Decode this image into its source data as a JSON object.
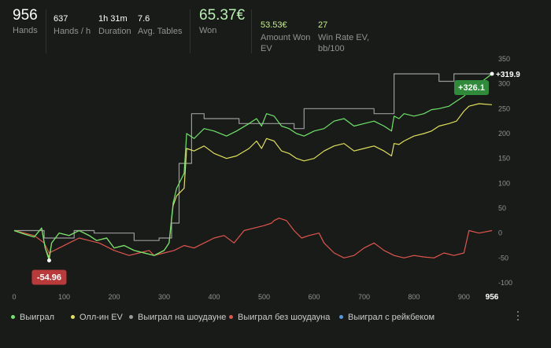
{
  "stats": {
    "hands": {
      "value": "956",
      "label": "Hands"
    },
    "hands_per_hour": {
      "value": "637",
      "label": "Hands / h"
    },
    "duration": {
      "value": "1h 31m",
      "label": "Duration"
    },
    "avg_tables": {
      "value": "7.6",
      "label": "Avg. Tables"
    },
    "won": {
      "value": "65.37€",
      "label": "Won"
    },
    "amount_won_ev": {
      "value": "53.53€",
      "label_line1": "Amount Won",
      "label_line2": "EV"
    },
    "win_rate_ev": {
      "value": "27",
      "label_line1": "Win Rate EV,",
      "label_line2": "bb/100"
    }
  },
  "colors": {
    "won": "#6fe36a",
    "allin_ev": "#e0e05a",
    "showdown": "#9a9a9a",
    "non_showdown": "#e0554d",
    "rakeback": "#4e9ae0",
    "positive_tag": "#2f8a3a",
    "negative_tag": "#b83a3a",
    "value_text": "#ffffff",
    "won_value": "#b7f0b0",
    "ev_value": "#c6f08a"
  },
  "chart_data": {
    "type": "line",
    "x_ticks": [
      0,
      100,
      200,
      300,
      400,
      500,
      600,
      700,
      800,
      900
    ],
    "x_end_label": "956",
    "y_ticks": [
      350,
      300,
      250,
      200,
      150,
      100,
      50,
      0,
      -50,
      -100
    ],
    "xlim": [
      0,
      956
    ],
    "ylim": [
      -100,
      350
    ],
    "grid": false,
    "legend_position": "bottom",
    "annotations": {
      "max_label": "+326.1",
      "min_label": "-54.96",
      "end_label": "+319.9"
    },
    "series": [
      {
        "name": "Выиграл",
        "color_key": "won",
        "points": [
          [
            0,
            5
          ],
          [
            20,
            -2
          ],
          [
            40,
            -8
          ],
          [
            55,
            10
          ],
          [
            62,
            -30
          ],
          [
            70,
            -55
          ],
          [
            75,
            -20
          ],
          [
            90,
            0
          ],
          [
            110,
            -5
          ],
          [
            130,
            5
          ],
          [
            150,
            -5
          ],
          [
            165,
            -15
          ],
          [
            185,
            -10
          ],
          [
            200,
            -30
          ],
          [
            220,
            -25
          ],
          [
            240,
            -35
          ],
          [
            260,
            -40
          ],
          [
            280,
            -45
          ],
          [
            300,
            -35
          ],
          [
            310,
            -20
          ],
          [
            318,
            60
          ],
          [
            325,
            90
          ],
          [
            340,
            120
          ],
          [
            345,
            200
          ],
          [
            360,
            190
          ],
          [
            380,
            210
          ],
          [
            400,
            205
          ],
          [
            425,
            195
          ],
          [
            445,
            205
          ],
          [
            470,
            220
          ],
          [
            485,
            230
          ],
          [
            495,
            215
          ],
          [
            505,
            240
          ],
          [
            520,
            235
          ],
          [
            535,
            215
          ],
          [
            550,
            210
          ],
          [
            565,
            200
          ],
          [
            580,
            195
          ],
          [
            600,
            205
          ],
          [
            620,
            210
          ],
          [
            640,
            225
          ],
          [
            660,
            230
          ],
          [
            680,
            215
          ],
          [
            700,
            220
          ],
          [
            720,
            225
          ],
          [
            740,
            215
          ],
          [
            755,
            205
          ],
          [
            760,
            235
          ],
          [
            770,
            230
          ],
          [
            780,
            240
          ],
          [
            800,
            235
          ],
          [
            820,
            240
          ],
          [
            835,
            248
          ],
          [
            850,
            250
          ],
          [
            870,
            255
          ],
          [
            885,
            265
          ],
          [
            900,
            275
          ],
          [
            910,
            285
          ],
          [
            930,
            300
          ],
          [
            956,
            320
          ]
        ]
      },
      {
        "name": "Олл-ин EV",
        "color_key": "allin_ev",
        "points": [
          [
            0,
            5
          ],
          [
            20,
            -2
          ],
          [
            40,
            -8
          ],
          [
            55,
            10
          ],
          [
            62,
            -30
          ],
          [
            70,
            -50
          ],
          [
            75,
            -20
          ],
          [
            90,
            0
          ],
          [
            110,
            -5
          ],
          [
            130,
            5
          ],
          [
            150,
            -5
          ],
          [
            165,
            -15
          ],
          [
            185,
            -10
          ],
          [
            200,
            -30
          ],
          [
            220,
            -25
          ],
          [
            240,
            -35
          ],
          [
            260,
            -40
          ],
          [
            280,
            -45
          ],
          [
            300,
            -35
          ],
          [
            310,
            -20
          ],
          [
            318,
            55
          ],
          [
            325,
            75
          ],
          [
            340,
            90
          ],
          [
            345,
            170
          ],
          [
            360,
            165
          ],
          [
            380,
            175
          ],
          [
            400,
            160
          ],
          [
            425,
            150
          ],
          [
            445,
            155
          ],
          [
            470,
            170
          ],
          [
            485,
            185
          ],
          [
            495,
            170
          ],
          [
            505,
            190
          ],
          [
            520,
            185
          ],
          [
            535,
            165
          ],
          [
            550,
            160
          ],
          [
            565,
            150
          ],
          [
            580,
            145
          ],
          [
            600,
            150
          ],
          [
            620,
            165
          ],
          [
            640,
            175
          ],
          [
            660,
            180
          ],
          [
            680,
            165
          ],
          [
            700,
            170
          ],
          [
            720,
            175
          ],
          [
            740,
            165
          ],
          [
            755,
            155
          ],
          [
            760,
            180
          ],
          [
            770,
            178
          ],
          [
            780,
            185
          ],
          [
            800,
            195
          ],
          [
            820,
            200
          ],
          [
            835,
            205
          ],
          [
            850,
            215
          ],
          [
            870,
            220
          ],
          [
            885,
            225
          ],
          [
            900,
            245
          ],
          [
            910,
            255
          ],
          [
            930,
            260
          ],
          [
            956,
            258
          ]
        ]
      },
      {
        "name": "Выиграл на шоудауне",
        "color_key": "showdown",
        "points": [
          [
            0,
            5
          ],
          [
            60,
            5
          ],
          [
            60,
            -10
          ],
          [
            120,
            -10
          ],
          [
            120,
            5
          ],
          [
            160,
            5
          ],
          [
            160,
            0
          ],
          [
            240,
            0
          ],
          [
            240,
            -15
          ],
          [
            290,
            -15
          ],
          [
            290,
            -10
          ],
          [
            315,
            -10
          ],
          [
            315,
            20
          ],
          [
            330,
            20
          ],
          [
            330,
            140
          ],
          [
            355,
            140
          ],
          [
            355,
            240
          ],
          [
            380,
            240
          ],
          [
            380,
            230
          ],
          [
            450,
            230
          ],
          [
            450,
            220
          ],
          [
            560,
            220
          ],
          [
            560,
            210
          ],
          [
            580,
            210
          ],
          [
            580,
            250
          ],
          [
            720,
            250
          ],
          [
            720,
            240
          ],
          [
            760,
            240
          ],
          [
            760,
            320
          ],
          [
            850,
            320
          ],
          [
            850,
            305
          ],
          [
            880,
            305
          ],
          [
            880,
            320
          ],
          [
            956,
            320
          ]
        ]
      },
      {
        "name": "Выиграл без шоудауна",
        "color_key": "non_showdown",
        "points": [
          [
            0,
            5
          ],
          [
            40,
            -5
          ],
          [
            60,
            -20
          ],
          [
            70,
            -40
          ],
          [
            90,
            -30
          ],
          [
            110,
            -20
          ],
          [
            130,
            -10
          ],
          [
            150,
            -15
          ],
          [
            170,
            -20
          ],
          [
            200,
            -35
          ],
          [
            230,
            -45
          ],
          [
            250,
            -40
          ],
          [
            270,
            -35
          ],
          [
            280,
            -45
          ],
          [
            300,
            -40
          ],
          [
            320,
            -35
          ],
          [
            340,
            -25
          ],
          [
            360,
            -30
          ],
          [
            380,
            -20
          ],
          [
            400,
            -10
          ],
          [
            420,
            -5
          ],
          [
            440,
            -20
          ],
          [
            460,
            5
          ],
          [
            480,
            10
          ],
          [
            500,
            15
          ],
          [
            515,
            20
          ],
          [
            520,
            25
          ],
          [
            530,
            30
          ],
          [
            545,
            25
          ],
          [
            560,
            5
          ],
          [
            575,
            -10
          ],
          [
            590,
            -5
          ],
          [
            610,
            0
          ],
          [
            620,
            -20
          ],
          [
            640,
            -40
          ],
          [
            660,
            -50
          ],
          [
            680,
            -45
          ],
          [
            700,
            -30
          ],
          [
            720,
            -20
          ],
          [
            740,
            -35
          ],
          [
            760,
            -45
          ],
          [
            780,
            -50
          ],
          [
            800,
            -45
          ],
          [
            820,
            -48
          ],
          [
            840,
            -50
          ],
          [
            860,
            -40
          ],
          [
            880,
            -45
          ],
          [
            900,
            -40
          ],
          [
            910,
            5
          ],
          [
            930,
            0
          ],
          [
            956,
            5
          ]
        ]
      },
      {
        "name": "Выиграл с рейкбеком",
        "color_key": "rakeback",
        "points": []
      }
    ]
  }
}
